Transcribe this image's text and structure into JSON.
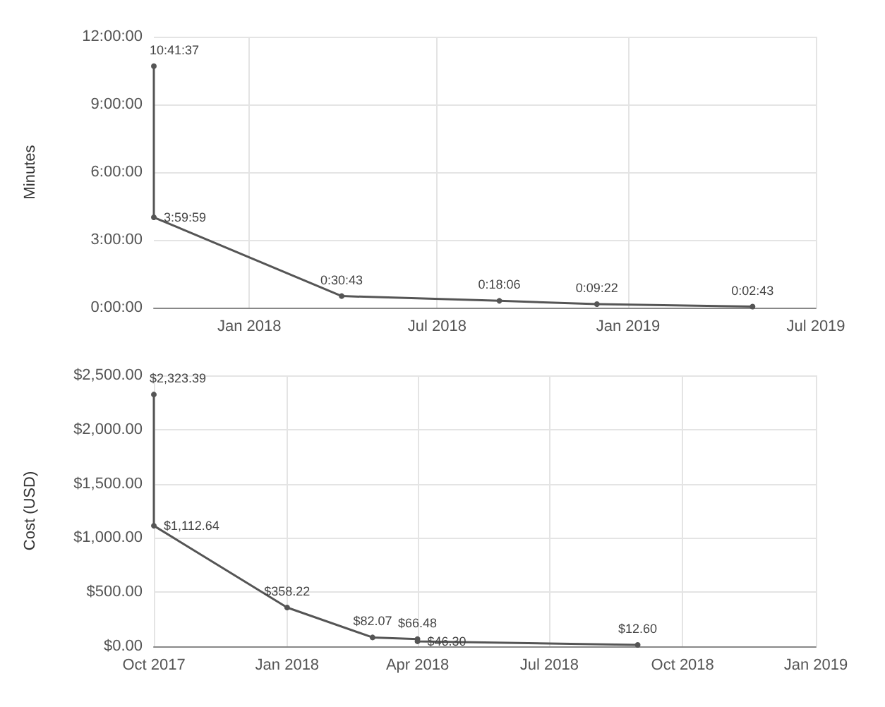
{
  "chart_data": [
    {
      "type": "line",
      "ylabel": "Minutes",
      "x": [
        "2017-10-01",
        "2017-10-01",
        "2018-03-31",
        "2018-08-30",
        "2018-12-02",
        "2019-05-01"
      ],
      "series": [
        {
          "color": "#555555",
          "values": [
            10.6936,
            3.9997,
            0.5119,
            0.3017,
            0.1561,
            0.0453
          ],
          "value_labels": [
            "10:41:37",
            "3:59:59",
            "0:30:43",
            "0:18:06",
            "0:09:22",
            "0:02:43"
          ]
        }
      ],
      "xlim": [
        "2017-10-01",
        "2019-07-01"
      ],
      "xticks": [
        {
          "value": "2018-01",
          "label": "Jan 2018"
        },
        {
          "value": "2018-07",
          "label": "Jul 2018"
        },
        {
          "value": "2019-01",
          "label": "Jan 2019"
        },
        {
          "value": "2019-07",
          "label": "Jul 2019"
        }
      ],
      "ylim": [
        0,
        12
      ],
      "yticks": [
        {
          "value": 0,
          "label": "0:00:00"
        },
        {
          "value": 3,
          "label": "3:00:00"
        },
        {
          "value": 6,
          "label": "6:00:00"
        },
        {
          "value": 9,
          "label": "9:00:00"
        },
        {
          "value": 12,
          "label": "12:00:00"
        }
      ],
      "grid": true,
      "marker": "circle"
    },
    {
      "type": "line",
      "ylabel": "Cost (USD)",
      "x": [
        "2017-10-01",
        "2017-10-01",
        "2018-01-01",
        "2018-03-01",
        "2018-04-01",
        "2018-04-01",
        "2018-08-31"
      ],
      "series": [
        {
          "color": "#555555",
          "values": [
            2323.39,
            1112.64,
            358.22,
            82.07,
            66.48,
            46.3,
            12.6
          ],
          "value_labels": [
            "$2,323.39",
            "$1,112.64",
            "$358.22",
            "$82.07",
            "$66.48",
            "$46.30",
            "$12.60"
          ]
        }
      ],
      "xlim": [
        "2017-10-01",
        "2019-01-01"
      ],
      "xticks": [
        {
          "value": "2017-10",
          "label": "Oct 2017"
        },
        {
          "value": "2018-01",
          "label": "Jan 2018"
        },
        {
          "value": "2018-04",
          "label": "Apr 2018"
        },
        {
          "value": "2018-07",
          "label": "Jul 2018"
        },
        {
          "value": "2018-10",
          "label": "Oct 2018"
        },
        {
          "value": "2019-01",
          "label": "Jan 2019"
        }
      ],
      "ylim": [
        0,
        2500
      ],
      "yticks": [
        {
          "value": 0,
          "label": "$0.00"
        },
        {
          "value": 500,
          "label": "$500.00"
        },
        {
          "value": 1000,
          "label": "$1,000.00"
        },
        {
          "value": 1500,
          "label": "$1,500.00"
        },
        {
          "value": 2000,
          "label": "$2,000.00"
        },
        {
          "value": 2500,
          "label": "$2,500.00"
        }
      ],
      "grid": true,
      "marker": "circle"
    }
  ]
}
